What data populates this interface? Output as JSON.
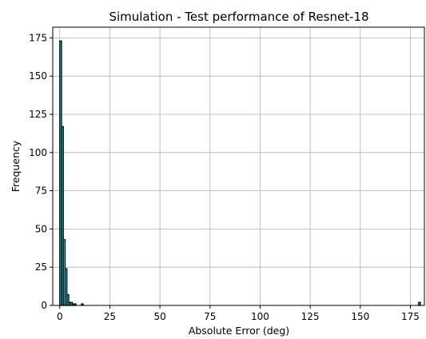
{
  "chart_data": {
    "type": "bar",
    "title": "Simulation - Test performance of Resnet-18",
    "xlabel": "Absolute Error (deg)",
    "ylabel": "Frequency",
    "xlim": [
      -3.5,
      182
    ],
    "ylim": [
      0,
      182
    ],
    "x_ticks": [
      0,
      25,
      50,
      75,
      100,
      125,
      150,
      175
    ],
    "y_ticks": [
      0,
      25,
      50,
      75,
      100,
      125,
      150,
      175
    ],
    "grid": true,
    "bar_color": "#17becf",
    "edge_color": "#000000",
    "bin_width": 0.9,
    "series": [
      {
        "bins": [
          {
            "x": 0.0,
            "count": 173
          },
          {
            "x": 0.9,
            "count": 117
          },
          {
            "x": 1.8,
            "count": 43
          },
          {
            "x": 2.7,
            "count": 24
          },
          {
            "x": 3.6,
            "count": 7
          },
          {
            "x": 4.5,
            "count": 2
          },
          {
            "x": 5.4,
            "count": 2
          },
          {
            "x": 6.3,
            "count": 1
          },
          {
            "x": 7.2,
            "count": 1
          },
          {
            "x": 10.8,
            "count": 1
          },
          {
            "x": 179.1,
            "count": 2
          }
        ]
      }
    ]
  }
}
